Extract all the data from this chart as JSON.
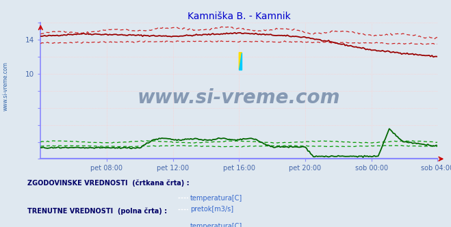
{
  "title": "Kamniška B. - Kamnik",
  "title_color": "#0000cc",
  "bg_color": "#dfe8f0",
  "plot_bg_color": "#dfe8f0",
  "grid_v_color": "#ffcccc",
  "grid_h_color": "#ffcccc",
  "xlim": [
    0,
    288
  ],
  "ylim": [
    0,
    16
  ],
  "xtick_labels": [
    "pet 08:00",
    "pet 12:00",
    "pet 16:00",
    "pet 20:00",
    "sob 00:00",
    "sob 04:00"
  ],
  "xtick_positions": [
    48,
    96,
    144,
    192,
    240,
    288
  ],
  "ytick_labels": [
    "",
    "",
    "",
    "",
    "",
    "10",
    "",
    "14",
    ""
  ],
  "ytick_positions": [
    0,
    2,
    4,
    6,
    8,
    10,
    12,
    14,
    16
  ],
  "tick_color": "#4466aa",
  "temp_solid_color": "#990000",
  "temp_dashed_color": "#cc2222",
  "flow_solid_color": "#006600",
  "flow_dashed_color": "#009900",
  "axis_bottom_color": "#8888ff",
  "axis_left_color": "#8888ff",
  "watermark": "www.si-vreme.com",
  "watermark_color": "#1a3a6a",
  "sidebar_text": "www.si-vreme.com",
  "sidebar_color": "#3366aa",
  "legend_hist_text": "ZGODOVINSKE VREDNOSTI  (črtkana črta) :",
  "legend_curr_text": "TRENUTNE VREDNOSTI  (polna črta) :",
  "legend_temp": "temperatura[C]",
  "legend_flow": "pretok[m3/s]",
  "legend_header_color": "#000066",
  "legend_item_color": "#3366cc",
  "icon_temp_color": "#cc0000",
  "icon_flow_color": "#00aa00"
}
